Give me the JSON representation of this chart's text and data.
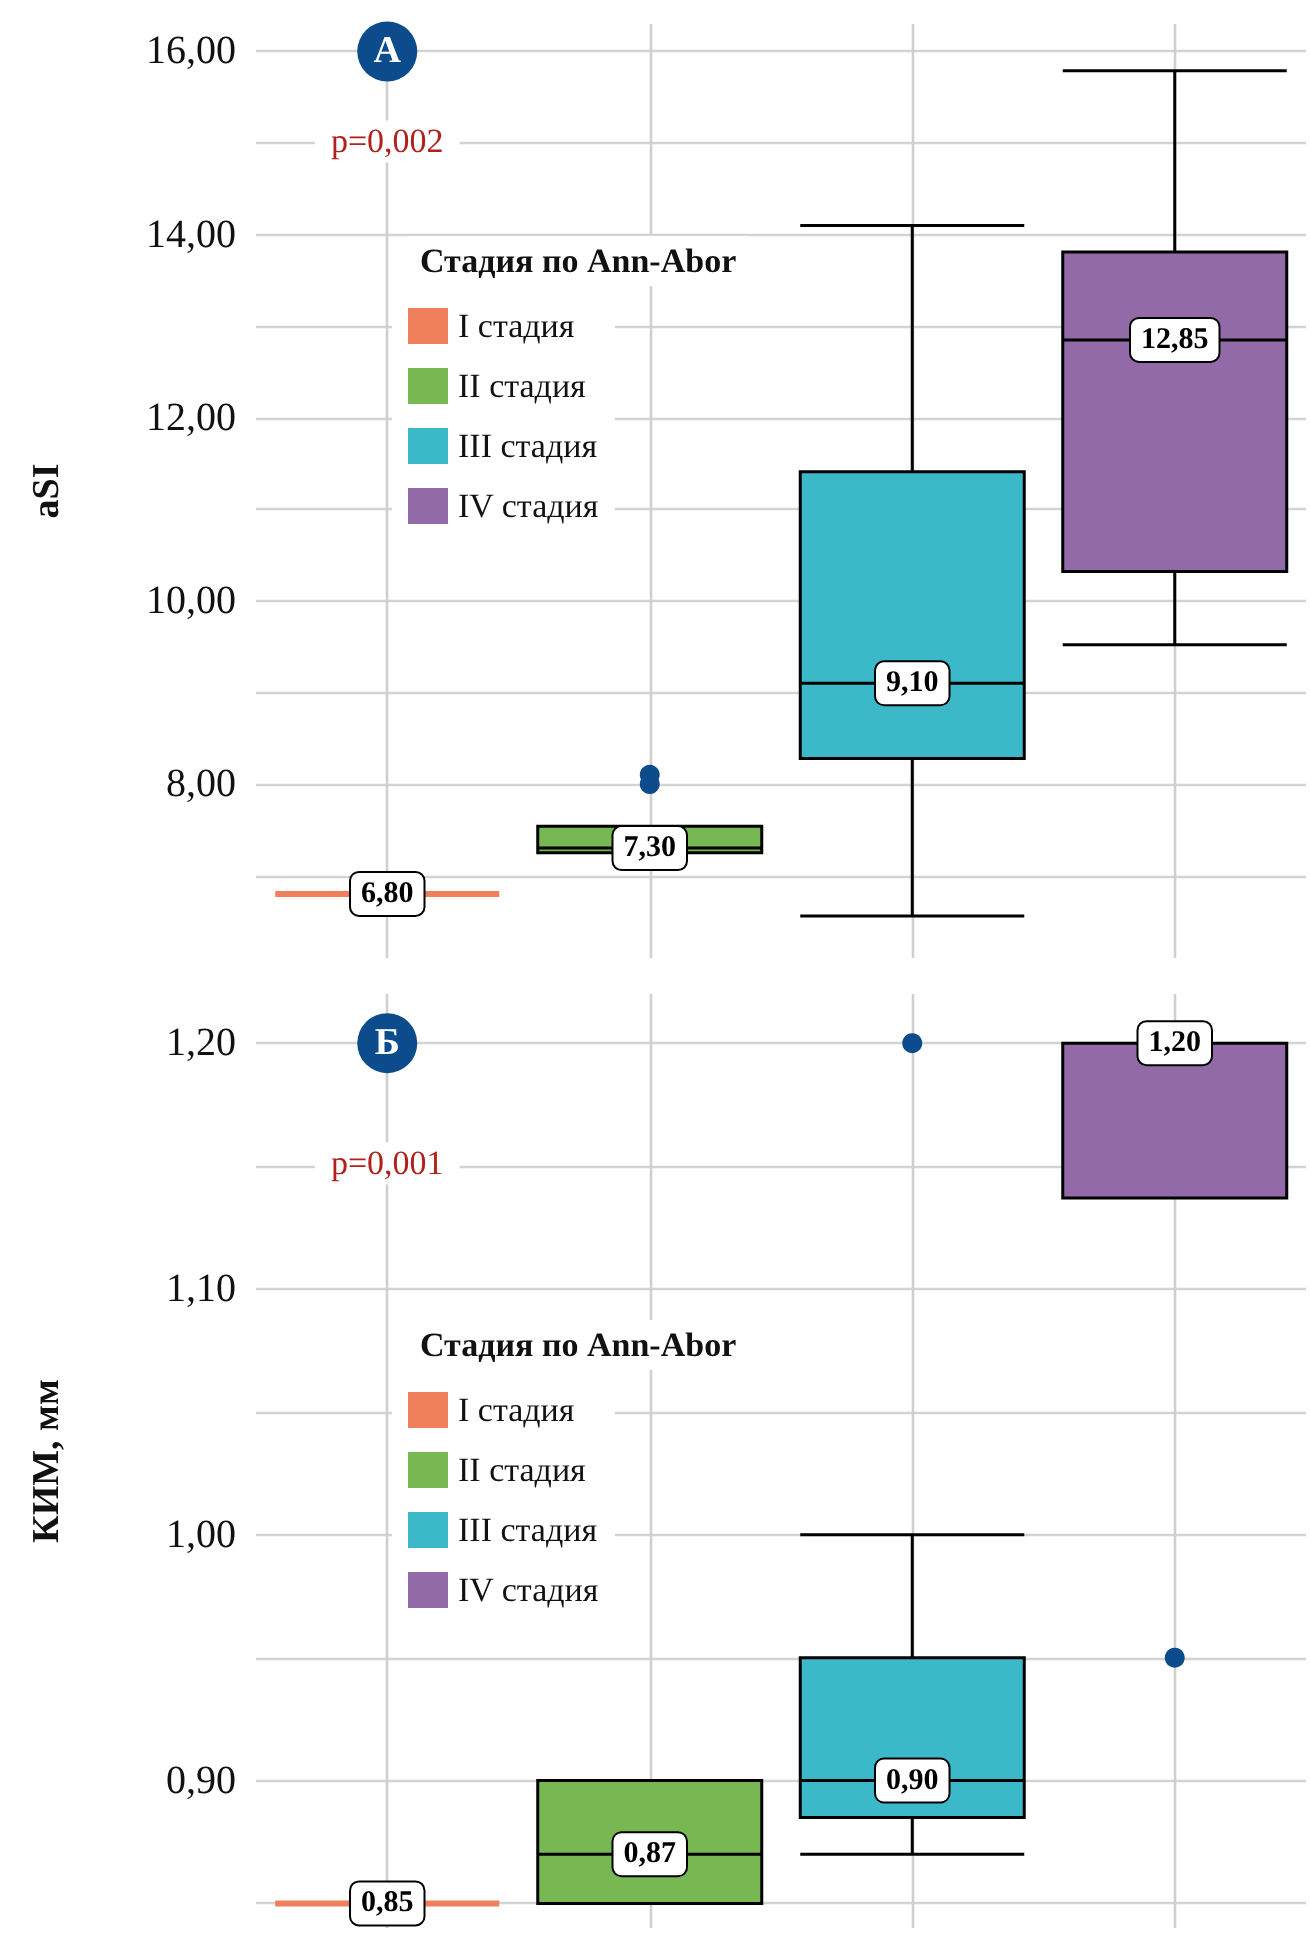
{
  "chart_data": [
    {
      "type": "box",
      "ylabel": "aSI",
      "legend_title": "Стадия по Ann-Abor",
      "annotations": [
        "А",
        "p=0,002"
      ],
      "categories": [
        null,
        null,
        null,
        null
      ],
      "series": [
        {
          "name": "I стадия",
          "color": "#f07f5c",
          "boxes": [
            {
              "low": 6.8,
              "q1": 6.8,
              "median": 6.8,
              "q3": 6.8,
              "high": 6.8
            },
            null,
            null,
            null
          ],
          "value_labels": [
            "6,80",
            null,
            null,
            null
          ]
        },
        {
          "name": "II стадия",
          "color": "#77b853",
          "boxes": [
            null,
            {
              "low": 7.25,
              "q1": 7.25,
              "median": 7.3,
              "q3": 7.54,
              "high": 7.54,
              "outliers": [
                8.0,
                8.1
              ]
            },
            null,
            null
          ],
          "value_labels": [
            null,
            "7,30",
            null,
            null
          ]
        },
        {
          "name": "III стадия",
          "color": "#3cb9c9",
          "boxes": [
            null,
            null,
            {
              "low": 6.56,
              "q1": 8.28,
              "median": 9.1,
              "q3": 11.41,
              "high": 14.1
            },
            null
          ],
          "value_labels": [
            null,
            null,
            "9,10",
            null
          ]
        },
        {
          "name": "IV стадия",
          "color": "#936aa8",
          "boxes": [
            null,
            null,
            null,
            {
              "low": 9.52,
              "q1": 10.32,
              "median": 12.85,
              "q3": 13.81,
              "high": 15.79
            }
          ],
          "value_labels": [
            null,
            null,
            null,
            "12,85"
          ]
        }
      ],
      "ylim": [
        6.1,
        16.3
      ],
      "yticks": [
        {
          "value": 7,
          "label": null
        },
        {
          "value": 8,
          "label": "8,00"
        },
        {
          "value": 9,
          "label": null
        },
        {
          "value": 10,
          "label": "10,00"
        },
        {
          "value": 11,
          "label": null
        },
        {
          "value": 12,
          "label": "12,00"
        },
        {
          "value": 13,
          "label": null
        },
        {
          "value": 14,
          "label": "14,00"
        },
        {
          "value": 15,
          "label": null
        },
        {
          "value": 16,
          "label": "16,00"
        }
      ],
      "grid": true,
      "legend": "top left"
    },
    {
      "type": "box",
      "ylabel": "КИМ, мм",
      "legend_title": "Стадия по Ann-Abor",
      "annotations": [
        "Б",
        "p=0,001"
      ],
      "categories": [
        null,
        null,
        null,
        null
      ],
      "series": [
        {
          "name": "I стадия",
          "color": "#f07f5c",
          "boxes": [
            {
              "low": 0.85,
              "q1": 0.85,
              "median": 0.85,
              "q3": 0.85,
              "high": 0.85
            },
            null,
            null,
            null
          ],
          "value_labels": [
            "0,85",
            null,
            null,
            null
          ]
        },
        {
          "name": "II стадия",
          "color": "#77b853",
          "boxes": [
            null,
            {
              "low": 0.85,
              "q1": 0.85,
              "median": 0.87,
              "q3": 0.9,
              "high": 0.9
            },
            null,
            null
          ],
          "value_labels": [
            null,
            "0,87",
            null,
            null
          ]
        },
        {
          "name": "III стадия",
          "color": "#3cb9c9",
          "boxes": [
            null,
            null,
            {
              "low": 0.87,
              "q1": 0.885,
              "median": 0.9,
              "q3": 0.95,
              "high": 1.0,
              "outliers": [
                1.2
              ]
            },
            null
          ],
          "value_labels": [
            null,
            null,
            "0,90",
            null
          ]
        },
        {
          "name": "IV стадия",
          "color": "#936aa8",
          "boxes": [
            null,
            null,
            null,
            {
              "low": 1.137,
              "q1": 1.137,
              "median": 1.2,
              "q3": 1.2,
              "high": 1.2,
              "outliers": [
                0.95
              ]
            }
          ],
          "value_labels": [
            null,
            null,
            null,
            "1,20"
          ]
        }
      ],
      "ylim": [
        0.84,
        1.22
      ],
      "yticks": [
        {
          "value": 0.85,
          "label": null
        },
        {
          "value": 0.9,
          "label": "0,90"
        },
        {
          "value": 0.95,
          "label": null
        },
        {
          "value": 1.0,
          "label": "1,00"
        },
        {
          "value": 1.05,
          "label": null
        },
        {
          "value": 1.1,
          "label": "1,10"
        },
        {
          "value": 1.15,
          "label": null
        },
        {
          "value": 1.2,
          "label": "1,20"
        }
      ],
      "grid": true,
      "legend": "left"
    }
  ]
}
